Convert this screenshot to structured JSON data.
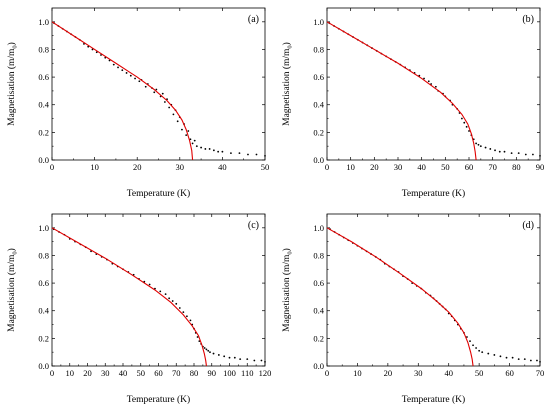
{
  "chart_data": [
    {
      "type": "scatter",
      "label": "(a)",
      "xlabel": "Temperature (K)",
      "ylabel": "Magnetisation (m/m",
      "ylabel_sub": "0",
      "ylabel_close": ")",
      "xlim": [
        0,
        50
      ],
      "ylim": [
        0,
        1.1
      ],
      "xticks": [
        0,
        10,
        20,
        30,
        40,
        50
      ],
      "yticks": [
        0.0,
        0.2,
        0.4,
        0.6,
        0.8,
        1.0
      ],
      "tc": 33,
      "point_color": "#000000",
      "fit_color": "#e00000",
      "series": [
        {
          "kind": "points",
          "x": [
            0.5,
            1.5,
            2.5,
            3.5,
            4.5,
            5.5,
            6.5,
            7.5,
            8.5,
            9.5,
            10.5,
            11.5,
            12.5,
            13.5,
            14.5,
            15.5,
            16.5,
            17.5,
            18.5,
            19.5,
            20.5,
            21.0,
            22.0,
            22.5,
            23.5,
            24.0,
            24.5,
            25.5,
            26.0,
            26.5,
            27.0,
            27.5,
            28.0,
            28.5,
            29.0,
            29.5,
            30.0,
            30.5,
            31.0,
            31.5,
            32.0,
            32.5,
            33.0,
            33.5,
            34.0,
            35.0,
            36.0,
            37.0,
            38.0,
            39.0,
            40.0,
            42.0,
            44.0,
            46.0,
            48.0,
            50.0
          ],
          "y": [
            0.99,
            0.97,
            0.95,
            0.93,
            0.91,
            0.89,
            0.87,
            0.84,
            0.82,
            0.8,
            0.78,
            0.76,
            0.74,
            0.72,
            0.69,
            0.67,
            0.65,
            0.63,
            0.61,
            0.59,
            0.57,
            0.58,
            0.53,
            0.55,
            0.52,
            0.49,
            0.51,
            0.46,
            0.48,
            0.42,
            0.44,
            0.38,
            0.4,
            0.33,
            0.36,
            0.28,
            0.31,
            0.22,
            0.26,
            0.18,
            0.21,
            0.15,
            0.12,
            0.14,
            0.1,
            0.09,
            0.08,
            0.08,
            0.07,
            0.06,
            0.06,
            0.05,
            0.05,
            0.04,
            0.04,
            0.03
          ]
        },
        {
          "kind": "fit",
          "x": [
            0,
            5,
            10,
            15,
            20,
            24,
            27,
            29,
            30.5,
            31.5,
            32.3,
            32.8,
            33.0
          ],
          "y": [
            1.0,
            0.9,
            0.8,
            0.7,
            0.6,
            0.51,
            0.43,
            0.36,
            0.29,
            0.22,
            0.14,
            0.07,
            0.0
          ]
        }
      ]
    },
    {
      "type": "scatter",
      "label": "(b)",
      "xlabel": "Temperature (K)",
      "ylabel": "Magnetisation (m/m",
      "ylabel_sub": "0",
      "ylabel_close": ")",
      "xlim": [
        0,
        90
      ],
      "ylim": [
        0,
        1.1
      ],
      "xticks": [
        0,
        10,
        20,
        30,
        40,
        50,
        60,
        70,
        80,
        90
      ],
      "yticks": [
        0.0,
        0.2,
        0.4,
        0.6,
        0.8,
        1.0
      ],
      "tc": 63,
      "point_color": "#000000",
      "fit_color": "#e00000",
      "series": [
        {
          "kind": "points",
          "x": [
            1,
            3,
            5,
            7,
            9,
            11,
            13,
            15,
            17,
            19,
            21,
            23,
            25,
            27,
            29,
            31,
            33,
            35,
            37,
            39,
            41,
            43,
            44,
            46,
            47,
            49,
            50,
            52,
            53,
            55,
            56,
            57,
            58,
            59,
            60,
            61,
            62,
            63,
            64,
            65,
            67,
            69,
            71,
            73,
            75,
            78,
            81,
            84,
            87,
            90
          ],
          "y": [
            0.99,
            0.97,
            0.95,
            0.93,
            0.91,
            0.89,
            0.87,
            0.85,
            0.83,
            0.81,
            0.79,
            0.77,
            0.75,
            0.73,
            0.71,
            0.69,
            0.67,
            0.65,
            0.63,
            0.61,
            0.59,
            0.57,
            0.55,
            0.53,
            0.5,
            0.48,
            0.46,
            0.43,
            0.4,
            0.37,
            0.34,
            0.3,
            0.27,
            0.24,
            0.21,
            0.18,
            0.15,
            0.12,
            0.11,
            0.1,
            0.09,
            0.08,
            0.07,
            0.06,
            0.06,
            0.05,
            0.05,
            0.04,
            0.04,
            0.03
          ]
        },
        {
          "kind": "fit",
          "x": [
            0,
            10,
            20,
            30,
            40,
            48,
            53,
            57,
            59.5,
            61,
            62,
            62.6,
            63.0
          ],
          "y": [
            1.0,
            0.9,
            0.8,
            0.7,
            0.59,
            0.49,
            0.41,
            0.33,
            0.26,
            0.19,
            0.12,
            0.06,
            0.0
          ]
        }
      ]
    },
    {
      "type": "scatter",
      "label": "(c)",
      "xlabel": "Temperature (K)",
      "ylabel": "Magnetisation (m/m",
      "ylabel_sub": "0",
      "ylabel_close": ")",
      "xlim": [
        0,
        120
      ],
      "ylim": [
        0,
        1.1
      ],
      "xticks": [
        0,
        10,
        20,
        30,
        40,
        50,
        60,
        70,
        80,
        90,
        100,
        110,
        120
      ],
      "yticks": [
        0.0,
        0.2,
        0.4,
        0.6,
        0.8,
        1.0
      ],
      "tc": 87,
      "point_color": "#000000",
      "fit_color": "#e00000",
      "series": [
        {
          "kind": "points",
          "x": [
            1,
            4,
            7,
            10,
            13,
            16,
            19,
            22,
            25,
            28,
            31,
            34,
            37,
            40,
            43,
            46,
            49,
            52,
            55,
            58,
            61,
            64,
            66,
            68,
            70,
            72,
            74,
            76,
            78,
            79,
            80,
            81,
            82,
            83,
            84,
            85,
            86,
            87,
            88,
            89,
            91,
            94,
            97,
            100,
            103,
            106,
            110,
            114,
            118,
            120
          ],
          "y": [
            0.99,
            0.97,
            0.95,
            0.92,
            0.9,
            0.88,
            0.86,
            0.83,
            0.81,
            0.79,
            0.77,
            0.74,
            0.72,
            0.7,
            0.68,
            0.66,
            0.63,
            0.61,
            0.59,
            0.56,
            0.54,
            0.52,
            0.49,
            0.47,
            0.45,
            0.42,
            0.39,
            0.36,
            0.33,
            0.3,
            0.27,
            0.24,
            0.21,
            0.18,
            0.16,
            0.14,
            0.13,
            0.12,
            0.11,
            0.1,
            0.09,
            0.08,
            0.07,
            0.06,
            0.06,
            0.05,
            0.05,
            0.04,
            0.04,
            0.03
          ]
        },
        {
          "kind": "fit",
          "x": [
            0,
            15,
            30,
            45,
            58,
            67,
            74,
            79,
            82.5,
            84.5,
            85.8,
            86.6,
            87.0
          ],
          "y": [
            1.0,
            0.89,
            0.78,
            0.66,
            0.55,
            0.46,
            0.37,
            0.29,
            0.22,
            0.15,
            0.09,
            0.04,
            0.0
          ]
        }
      ]
    },
    {
      "type": "scatter",
      "label": "(d)",
      "xlabel": "Temperature (K)",
      "ylabel": "Magnetisation (m/m",
      "ylabel_sub": "0",
      "ylabel_close": ")",
      "xlim": [
        0,
        70
      ],
      "ylim": [
        0,
        1.1
      ],
      "xticks": [
        0,
        10,
        20,
        30,
        40,
        50,
        60,
        70
      ],
      "yticks": [
        0.0,
        0.2,
        0.4,
        0.6,
        0.8,
        1.0
      ],
      "tc": 48,
      "point_color": "#000000",
      "fit_color": "#e00000",
      "series": [
        {
          "kind": "points",
          "x": [
            1,
            2.5,
            4,
            5.5,
            7,
            8.5,
            10,
            11.5,
            13,
            14.5,
            16,
            17.5,
            19,
            20.5,
            22,
            23.5,
            25,
            26.5,
            28,
            29.5,
            31,
            32.5,
            34,
            35,
            36,
            37,
            38,
            39,
            40,
            41,
            42,
            43,
            44,
            45,
            46,
            47,
            48,
            49,
            50,
            51,
            53,
            55,
            57,
            59,
            61,
            63,
            65,
            67,
            69,
            70
          ],
          "y": [
            0.99,
            0.97,
            0.95,
            0.93,
            0.91,
            0.89,
            0.87,
            0.85,
            0.83,
            0.81,
            0.79,
            0.77,
            0.74,
            0.72,
            0.7,
            0.68,
            0.65,
            0.63,
            0.6,
            0.58,
            0.56,
            0.53,
            0.51,
            0.49,
            0.47,
            0.45,
            0.43,
            0.41,
            0.38,
            0.36,
            0.33,
            0.3,
            0.27,
            0.24,
            0.21,
            0.18,
            0.15,
            0.13,
            0.11,
            0.1,
            0.09,
            0.08,
            0.07,
            0.06,
            0.06,
            0.05,
            0.05,
            0.04,
            0.04,
            0.03
          ]
        },
        {
          "kind": "fit",
          "x": [
            0,
            8,
            16,
            24,
            31,
            36,
            40,
            43,
            45,
            46.3,
            47.2,
            47.7,
            48.0
          ],
          "y": [
            1.0,
            0.9,
            0.79,
            0.67,
            0.56,
            0.47,
            0.39,
            0.31,
            0.24,
            0.17,
            0.1,
            0.05,
            0.0
          ]
        }
      ]
    }
  ]
}
